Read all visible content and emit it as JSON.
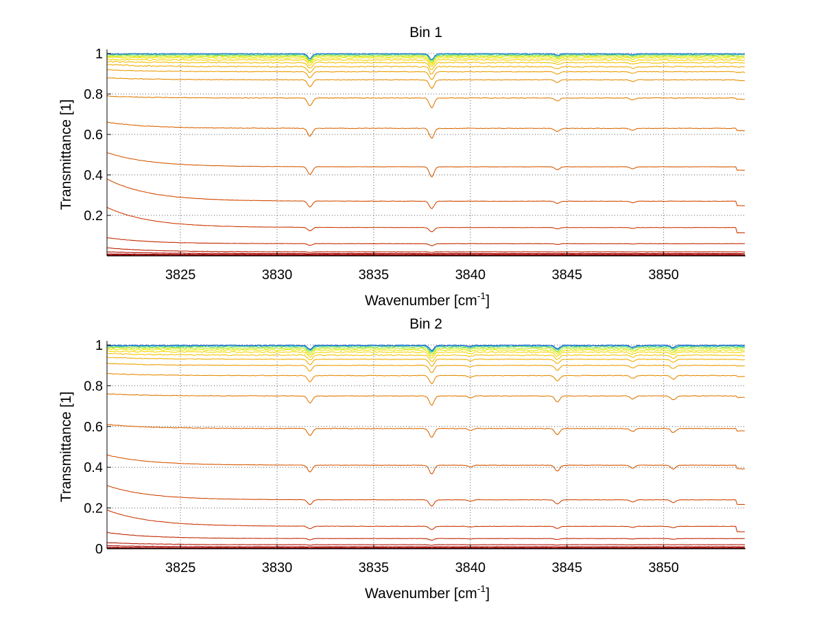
{
  "chart_data": [
    {
      "type": "line",
      "title": "Bin 1",
      "xlabel": "Wavenumber [cm",
      "xlabel_sup": "-1",
      "xlabel_end": "]",
      "ylabel": "Transmittance [1]",
      "xlim": [
        3821.2,
        3854.2
      ],
      "ylim": [
        0,
        1
      ],
      "x_ticks": [
        3825,
        3830,
        3835,
        3840,
        3845,
        3850
      ],
      "x_tick_labels": [
        "3825",
        "3830",
        "3835",
        "3840",
        "3845",
        "3850"
      ],
      "y_ticks": [
        0.2,
        0.4,
        0.6,
        0.8,
        1
      ],
      "y_tick_labels": [
        "0.2",
        "0.4",
        "0.6",
        "0.8",
        "1"
      ],
      "grid": true,
      "series_levels": [
        0.002,
        0.004,
        0.007,
        0.012,
        0.02,
        0.06,
        0.14,
        0.27,
        0.44,
        0.63,
        0.78,
        0.87,
        0.91,
        0.935,
        0.955,
        0.968,
        0.978,
        0.985,
        0.99,
        0.994,
        0.997,
        0.999
      ],
      "series_edge_start": [
        0.002,
        0.005,
        0.01,
        0.02,
        0.04,
        0.09,
        0.24,
        0.38,
        0.51,
        0.66,
        0.79,
        0.88,
        0.92,
        0.945,
        0.96,
        0.97,
        0.98,
        0.985,
        0.99,
        0.995,
        0.997,
        0.999
      ],
      "series_colors": [
        "#8b0000",
        "#990000",
        "#a00000",
        "#b00a00",
        "#bb1c00",
        "#c32a00",
        "#cc3800",
        "#d24a00",
        "#d65800",
        "#db6600",
        "#e07a00",
        "#e68a00",
        "#ec9a00",
        "#f0ab00",
        "#f4bd00",
        "#f7cf00",
        "#f2e000",
        "#d8ec10",
        "#a8e63a",
        "#6ad47a",
        "#30c0c0",
        "#1f6fd0"
      ],
      "absorption_lines": [
        3831.7,
        3838.0,
        3844.5,
        3848.4
      ],
      "absorption_depths": [
        0.04,
        0.05,
        0.015,
        0.01
      ]
    },
    {
      "type": "line",
      "title": "Bin 2",
      "xlabel": "Wavenumber [cm",
      "xlabel_sup": "-1",
      "xlabel_end": "]",
      "ylabel": "Transmittance [1]",
      "xlim": [
        3821.2,
        3854.2
      ],
      "ylim": [
        0,
        1
      ],
      "x_ticks": [
        3825,
        3830,
        3835,
        3840,
        3845,
        3850
      ],
      "x_tick_labels": [
        "3825",
        "3830",
        "3835",
        "3840",
        "3845",
        "3850"
      ],
      "y_ticks": [
        0,
        0.2,
        0.4,
        0.6,
        0.8,
        1
      ],
      "y_tick_labels": [
        "0",
        "0.2",
        "0.4",
        "0.6",
        "0.8",
        "1"
      ],
      "grid": true,
      "series_levels": [
        0.002,
        0.005,
        0.01,
        0.02,
        0.05,
        0.11,
        0.24,
        0.41,
        0.59,
        0.75,
        0.85,
        0.9,
        0.93,
        0.95,
        0.965,
        0.975,
        0.983,
        0.99,
        0.994,
        0.997,
        0.999
      ],
      "series_edge_start": [
        0.003,
        0.007,
        0.015,
        0.03,
        0.08,
        0.19,
        0.31,
        0.46,
        0.61,
        0.76,
        0.86,
        0.91,
        0.94,
        0.96,
        0.97,
        0.98,
        0.986,
        0.99,
        0.995,
        0.997,
        0.999
      ],
      "series_colors": [
        "#8b0000",
        "#990000",
        "#a80400",
        "#b41400",
        "#c02600",
        "#c93400",
        "#d04400",
        "#d65600",
        "#db6600",
        "#e07800",
        "#e68a00",
        "#ec9c00",
        "#f1ae00",
        "#f5c200",
        "#f6d600",
        "#e6e800",
        "#bfe822",
        "#86dc58",
        "#45c8a8",
        "#22a8d8",
        "#1a5fc8"
      ],
      "absorption_lines": [
        3831.7,
        3838.0,
        3840.0,
        3844.5,
        3848.4,
        3850.5
      ],
      "absorption_depths": [
        0.035,
        0.045,
        0.01,
        0.03,
        0.015,
        0.02
      ]
    }
  ]
}
